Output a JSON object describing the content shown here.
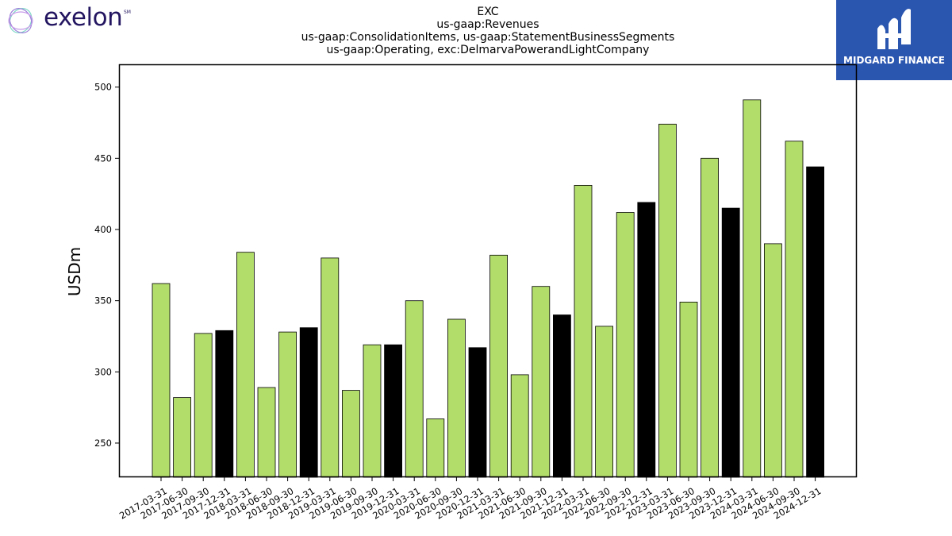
{
  "logos": {
    "left_brand": "exelon",
    "left_brand_mark": "SM",
    "right_brand": "MIDGARD FINANCE"
  },
  "chart_data": {
    "type": "bar",
    "title_lines": [
      "EXC",
      "us-gaap:Revenues",
      "us-gaap:ConsolidationItems, us-gaap:StatementBusinessSegments",
      "us-gaap:Operating, exc:DelmarvaPowerandLightCompany"
    ],
    "xlabel": "",
    "ylabel": "USDm",
    "ylim": [
      226,
      516
    ],
    "yticks": [
      250,
      300,
      350,
      400,
      450,
      500
    ],
    "grid": false,
    "colors": {
      "quarter": "#b2dd6a",
      "year_end": "#000000",
      "edge": "#000000"
    },
    "categories": [
      "2017-03-31",
      "2017-06-30",
      "2017-09-30",
      "2017-12-31",
      "2018-03-31",
      "2018-06-30",
      "2018-09-30",
      "2018-12-31",
      "2019-03-31",
      "2019-06-30",
      "2019-09-30",
      "2019-12-31",
      "2020-03-31",
      "2020-06-30",
      "2020-09-30",
      "2020-12-31",
      "2021-03-31",
      "2021-06-30",
      "2021-09-30",
      "2021-12-31",
      "2022-03-31",
      "2022-06-30",
      "2022-09-30",
      "2022-12-31",
      "2023-03-31",
      "2023-06-30",
      "2023-09-30",
      "2023-12-31",
      "2024-03-31",
      "2024-06-30",
      "2024-09-30",
      "2024-12-31"
    ],
    "values": [
      362,
      282,
      327,
      329,
      384,
      289,
      328,
      331,
      380,
      287,
      319,
      319,
      350,
      267,
      337,
      317,
      382,
      298,
      360,
      340,
      431,
      332,
      412,
      419,
      474,
      349,
      450,
      415,
      491,
      390,
      462,
      444
    ]
  }
}
